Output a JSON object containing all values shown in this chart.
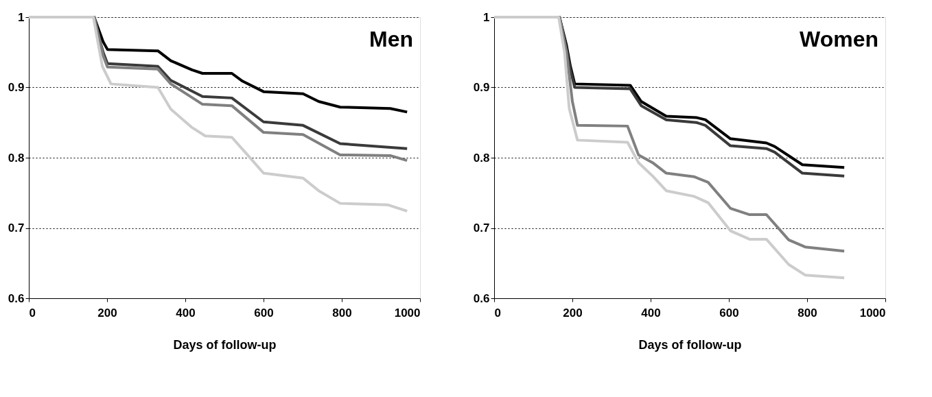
{
  "chart_data": [
    {
      "type": "line",
      "annotations": [
        "Men"
      ],
      "xlabel": "Days of follow-up",
      "xlim": [
        0,
        1000
      ],
      "xticks": [
        0,
        200,
        400,
        600,
        800,
        1000
      ],
      "ylim": [
        0.6,
        1
      ],
      "yticks": [
        0.6,
        0.7,
        0.8,
        0.9,
        1
      ],
      "grid": "y",
      "line_style": "solid",
      "marker": "none",
      "series": [
        {
          "color": "#000000",
          "x": [
            0,
            167,
            180,
            190,
            201,
            330,
            363,
            417,
            444,
            519,
            546,
            600,
            701,
            741,
            796,
            924,
            967
          ],
          "values": [
            1,
            1,
            0.98,
            0.965,
            0.954,
            0.952,
            0.938,
            0.925,
            0.92,
            0.92,
            0.909,
            0.894,
            0.891,
            0.88,
            0.872,
            0.87,
            0.865
          ]
        },
        {
          "color": "#3a3a3a",
          "x": [
            0,
            167,
            180,
            190,
            201,
            330,
            363,
            444,
            519,
            600,
            701,
            796,
            967
          ],
          "values": [
            1,
            1,
            0.97,
            0.95,
            0.934,
            0.93,
            0.91,
            0.887,
            0.885,
            0.851,
            0.846,
            0.82,
            0.813
          ]
        },
        {
          "color": "#808080",
          "x": [
            0,
            167,
            180,
            190,
            201,
            330,
            363,
            444,
            519,
            600,
            701,
            796,
            924,
            967
          ],
          "values": [
            1,
            1,
            0.97,
            0.945,
            0.929,
            0.926,
            0.905,
            0.876,
            0.874,
            0.836,
            0.833,
            0.804,
            0.803,
            0.796
          ]
        },
        {
          "color": "#cccccc",
          "x": [
            0,
            165,
            178,
            188,
            210,
            330,
            363,
            417,
            451,
            519,
            559,
            600,
            701,
            741,
            796,
            917,
            967
          ],
          "values": [
            1,
            1,
            0.96,
            0.93,
            0.905,
            0.9,
            0.869,
            0.843,
            0.831,
            0.829,
            0.804,
            0.778,
            0.771,
            0.753,
            0.735,
            0.733,
            0.724
          ]
        }
      ]
    },
    {
      "type": "line",
      "annotations": [
        "Women"
      ],
      "xlabel": "Days of follow-up",
      "xlim": [
        0,
        1000
      ],
      "xticks": [
        0,
        200,
        400,
        600,
        800,
        1000
      ],
      "ylim": [
        0.6,
        1
      ],
      "yticks": [
        0.6,
        0.7,
        0.8,
        0.9,
        1
      ],
      "grid": "y",
      "line_style": "solid",
      "marker": "none",
      "series": [
        {
          "color": "#000000",
          "x": [
            0,
            167,
            185,
            195,
            206,
            348,
            376,
            440,
            518,
            540,
            604,
            696,
            717,
            788,
            895
          ],
          "values": [
            1,
            1,
            0.96,
            0.93,
            0.905,
            0.903,
            0.88,
            0.859,
            0.857,
            0.854,
            0.827,
            0.821,
            0.816,
            0.79,
            0.786
          ]
        },
        {
          "color": "#3a3a3a",
          "x": [
            0,
            167,
            185,
            195,
            206,
            348,
            376,
            440,
            518,
            540,
            604,
            696,
            717,
            788,
            895
          ],
          "values": [
            1,
            1,
            0.955,
            0.925,
            0.9,
            0.898,
            0.874,
            0.854,
            0.85,
            0.846,
            0.817,
            0.813,
            0.808,
            0.778,
            0.774
          ]
        },
        {
          "color": "#808080",
          "x": [
            0,
            167,
            185,
            200,
            213,
            341,
            369,
            405,
            440,
            511,
            547,
            604,
            653,
            696,
            753,
            795,
            895
          ],
          "values": [
            1,
            1,
            0.95,
            0.88,
            0.846,
            0.845,
            0.804,
            0.793,
            0.778,
            0.773,
            0.765,
            0.728,
            0.719,
            0.719,
            0.683,
            0.673,
            0.667
          ]
        },
        {
          "color": "#cccccc",
          "x": [
            0,
            165,
            180,
            192,
            213,
            341,
            369,
            405,
            440,
            511,
            547,
            604,
            653,
            696,
            753,
            795,
            895
          ],
          "values": [
            1,
            1,
            0.95,
            0.87,
            0.825,
            0.822,
            0.793,
            0.774,
            0.753,
            0.745,
            0.736,
            0.696,
            0.684,
            0.684,
            0.648,
            0.633,
            0.629
          ]
        }
      ]
    }
  ]
}
